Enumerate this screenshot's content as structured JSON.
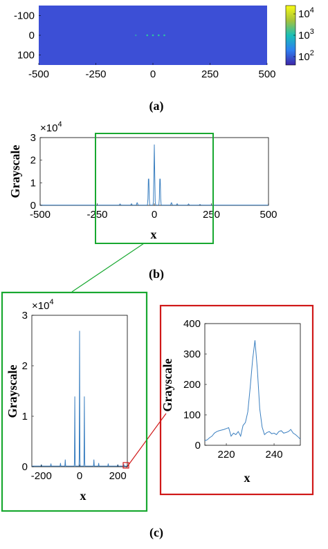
{
  "colors": {
    "line": "#3a7fc0",
    "heatmap_bg": "#3c4fd6",
    "heatmap_peak": "#2bd49a",
    "green_box": "#18a830",
    "red_box": "#d01818"
  },
  "captions": {
    "a": "(a)",
    "b": "(b)",
    "c": "(c)"
  },
  "chart_data": [
    {
      "id": "a",
      "type": "heatmap",
      "xlim": [
        -500,
        500
      ],
      "ylim": [
        -150,
        150
      ],
      "xticks": [
        "-500",
        "-250",
        "0",
        "250",
        "500"
      ],
      "yticks": [
        "-100",
        "0",
        "100"
      ],
      "colorbar": {
        "scale": "log",
        "ticks": [
          "10",
          "10",
          "10"
        ],
        "tick_exponents": [
          "4",
          "3",
          "2"
        ]
      },
      "bright_spots_x": [
        -75,
        -25,
        0,
        25,
        50
      ]
    },
    {
      "id": "b",
      "type": "line",
      "xlabel": "x",
      "ylabel": "Grayscale",
      "xlim": [
        -500,
        500
      ],
      "ylim": [
        0,
        3
      ],
      "multiplier": "×10",
      "multiplier_exp": "4",
      "xticks": [
        "-500",
        "-250",
        "0",
        "250",
        "500"
      ],
      "yticks": [
        "0",
        "1",
        "2",
        "3"
      ],
      "peaks": [
        {
          "x": -150,
          "y": 0.05
        },
        {
          "x": -100,
          "y": 0.06
        },
        {
          "x": -75,
          "y": 0.12
        },
        {
          "x": -25,
          "y": 1.38
        },
        {
          "x": 0,
          "y": 2.68
        },
        {
          "x": 25,
          "y": 1.38
        },
        {
          "x": 75,
          "y": 0.12
        },
        {
          "x": 100,
          "y": 0.06
        },
        {
          "x": 150,
          "y": 0.05
        },
        {
          "x": 200,
          "y": 0.03
        }
      ]
    },
    {
      "id": "c-left",
      "type": "line",
      "xlabel": "x",
      "ylabel": "Grayscale",
      "xlim": [
        -250,
        250
      ],
      "ylim": [
        0,
        3
      ],
      "multiplier": "×10",
      "multiplier_exp": "4",
      "xticks": [
        "-200",
        "0",
        "200"
      ],
      "yticks": [
        "0",
        "1",
        "2",
        "3"
      ],
      "peaks": [
        {
          "x": -200,
          "y": 0.03
        },
        {
          "x": -150,
          "y": 0.05
        },
        {
          "x": -100,
          "y": 0.06
        },
        {
          "x": -75,
          "y": 0.13
        },
        {
          "x": -25,
          "y": 1.38
        },
        {
          "x": 0,
          "y": 2.68
        },
        {
          "x": 25,
          "y": 1.38
        },
        {
          "x": 75,
          "y": 0.13
        },
        {
          "x": 100,
          "y": 0.06
        },
        {
          "x": 150,
          "y": 0.05
        },
        {
          "x": 200,
          "y": 0.03
        },
        {
          "x": 232,
          "y": 0.035
        }
      ]
    },
    {
      "id": "c-right",
      "type": "line",
      "xlabel": "x",
      "ylabel": "Grayscale",
      "xlim": [
        211,
        251
      ],
      "ylim": [
        0,
        400
      ],
      "xticks": [
        "220",
        "240"
      ],
      "yticks": [
        "0",
        "100",
        "200",
        "300",
        "400"
      ],
      "x": [
        211,
        212,
        213,
        214,
        215,
        216,
        217,
        218,
        219,
        220,
        221,
        222,
        223,
        224,
        225,
        226,
        227,
        228,
        229,
        230,
        231,
        232,
        233,
        234,
        235,
        236,
        237,
        238,
        239,
        240,
        241,
        242,
        243,
        244,
        245,
        246,
        247,
        248,
        249,
        250,
        251
      ],
      "y": [
        15,
        18,
        25,
        30,
        40,
        45,
        48,
        50,
        52,
        55,
        58,
        30,
        40,
        35,
        45,
        30,
        65,
        75,
        110,
        190,
        280,
        345,
        250,
        120,
        60,
        35,
        42,
        45,
        38,
        40,
        35,
        45,
        48,
        40,
        42,
        45,
        52,
        40,
        35,
        28,
        20
      ]
    }
  ]
}
